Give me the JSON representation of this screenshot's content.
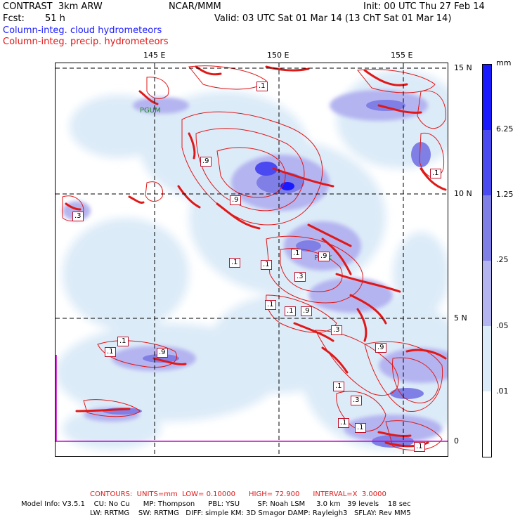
{
  "header": {
    "title": "CONTRAST  3km ARW",
    "org": "NCAR/MMM",
    "init": "Init: 00 UTC Thu 27 Feb 14",
    "fcst_label": "Fcst:",
    "fcst_value": "51 h",
    "valid": "Valid: 03 UTC Sat 01 Mar 14 (13 ChT Sat 01 Mar 14)",
    "field_cloud": "Column-integ. cloud hydrometeors",
    "field_precip": "Column-integ. precip. hydrometeors"
  },
  "axes": {
    "lon_labels": [
      "145 E",
      "150 E",
      "155 E"
    ],
    "lat_labels": [
      "15 N",
      "10 N",
      "5 N",
      "0"
    ]
  },
  "colorbar": {
    "unit": "mm",
    "labels": [
      "6.25",
      "1.25",
      ".25",
      ".05",
      ".01"
    ],
    "colors": [
      "#1a1aff",
      "#4a4af0",
      "#7f7fe6",
      "#b4b4f0",
      "#dcebf8",
      "#ffffff"
    ]
  },
  "places": [
    "PGUM",
    "PTKK"
  ],
  "contour_labels": [
    ".1",
    ".9",
    ".3",
    ".1",
    ".9",
    ".1",
    ".1",
    ".9",
    ".1",
    ".3",
    ".9",
    ".1",
    ".1",
    ".9",
    ".3",
    ".1",
    ".1",
    ".9",
    ".1",
    ".3",
    ".1",
    ".1",
    ".1"
  ],
  "footer": {
    "contours": "CONTOURS:  UNITS=mm  LOW= 0.10000      HIGH= 72.900      INTERVAL=X  3.0000",
    "model1": "Model Info: V3.5.1    CU: No Cu      MP: Thompson      PBL: YSU        SF: Noah LSM     3.0 km   39 levels    18 sec",
    "model2": "LW: RRTMG    SW: RRTMG   DIFF: simple KM: 3D Smagor DAMP: Rayleigh3   SFLAY: Rev MM5"
  }
}
